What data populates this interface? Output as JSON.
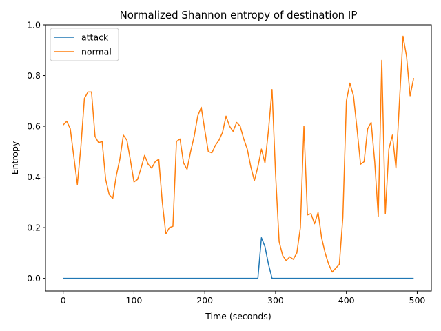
{
  "chart_data": {
    "type": "line",
    "title": "Normalized Shannon entropy of destination IP",
    "xlabel": "Time (seconds)",
    "ylabel": "Entropy",
    "xlim": [
      -25,
      520
    ],
    "ylim": [
      -0.05,
      1.0
    ],
    "xticks": [
      0,
      100,
      200,
      300,
      400,
      500
    ],
    "xtick_labels": [
      "0",
      "100",
      "200",
      "300",
      "400",
      "500"
    ],
    "yticks": [
      0.0,
      0.2,
      0.4,
      0.6,
      0.8,
      1.0
    ],
    "ytick_labels": [
      "0.0",
      "0.2",
      "0.4",
      "0.6",
      "0.8",
      "1.0"
    ],
    "grid": false,
    "legend_position": "upper-left",
    "series": [
      {
        "name": "attack",
        "color": "#1f77b4",
        "x": [
          0,
          275,
          280,
          285,
          290,
          295,
          300,
          495
        ],
        "y": [
          0.0,
          0.0,
          0.16,
          0.125,
          0.055,
          0.0,
          0.0,
          0.0
        ]
      },
      {
        "name": "normal",
        "color": "#ff7f0e",
        "x": [
          0,
          5,
          10,
          15,
          20,
          25,
          30,
          35,
          40,
          45,
          50,
          55,
          60,
          65,
          70,
          75,
          80,
          85,
          90,
          95,
          100,
          105,
          110,
          115,
          120,
          125,
          130,
          135,
          140,
          145,
          150,
          155,
          160,
          165,
          170,
          175,
          180,
          185,
          190,
          195,
          200,
          205,
          210,
          215,
          220,
          225,
          230,
          235,
          240,
          245,
          250,
          255,
          260,
          265,
          270,
          275,
          280,
          285,
          290,
          295,
          300,
          305,
          310,
          315,
          320,
          325,
          330,
          335,
          340,
          345,
          350,
          355,
          360,
          365,
          370,
          375,
          380,
          385,
          390,
          395,
          400,
          405,
          410,
          415,
          420,
          425,
          430,
          435,
          440,
          445,
          450,
          455,
          460,
          465,
          470,
          475,
          480,
          485,
          490,
          495
        ],
        "y": [
          0.605,
          0.62,
          0.59,
          0.48,
          0.37,
          0.52,
          0.71,
          0.735,
          0.735,
          0.56,
          0.535,
          0.54,
          0.39,
          0.33,
          0.315,
          0.405,
          0.47,
          0.565,
          0.545,
          0.465,
          0.38,
          0.39,
          0.435,
          0.485,
          0.45,
          0.435,
          0.46,
          0.47,
          0.3,
          0.175,
          0.2,
          0.205,
          0.54,
          0.55,
          0.455,
          0.43,
          0.5,
          0.56,
          0.64,
          0.675,
          0.585,
          0.5,
          0.495,
          0.525,
          0.545,
          0.575,
          0.64,
          0.6,
          0.58,
          0.615,
          0.6,
          0.55,
          0.51,
          0.44,
          0.385,
          0.44,
          0.51,
          0.455,
          0.585,
          0.745,
          0.41,
          0.145,
          0.09,
          0.07,
          0.085,
          0.075,
          0.1,
          0.2,
          0.6,
          0.25,
          0.255,
          0.215,
          0.26,
          0.16,
          0.1,
          0.055,
          0.025,
          0.04,
          0.055,
          0.24,
          0.7,
          0.77,
          0.72,
          0.59,
          0.45,
          0.46,
          0.59,
          0.615,
          0.46,
          0.245,
          0.86,
          0.255,
          0.51,
          0.565,
          0.435,
          0.7,
          0.955,
          0.875,
          0.72,
          0.79
        ]
      }
    ]
  }
}
